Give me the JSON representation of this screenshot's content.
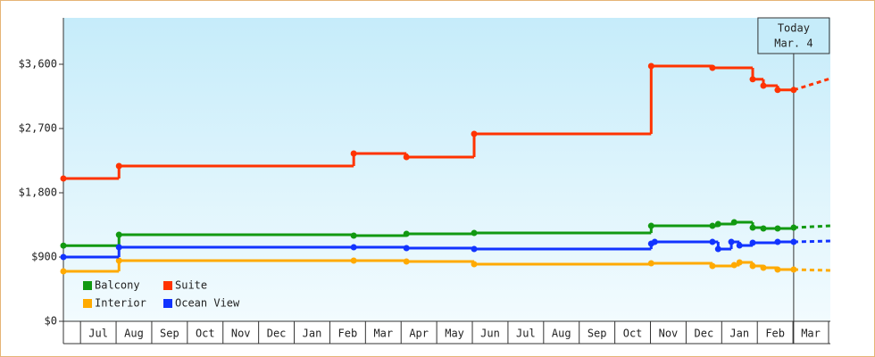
{
  "chart_data": {
    "type": "step-line",
    "xlim": [
      -0.48,
      21.05
    ],
    "xticks": [
      {
        "value": 0.5,
        "label": "Jul"
      },
      {
        "value": 1.5,
        "label": "Aug"
      },
      {
        "value": 2.5,
        "label": "Sep"
      },
      {
        "value": 3.5,
        "label": "Oct"
      },
      {
        "value": 4.5,
        "label": "Nov"
      },
      {
        "value": 5.5,
        "label": "Dec"
      },
      {
        "value": 6.5,
        "label": "Jan"
      },
      {
        "value": 7.5,
        "label": "Feb"
      },
      {
        "value": 8.5,
        "label": "Mar"
      },
      {
        "value": 9.5,
        "label": "Apr"
      },
      {
        "value": 10.5,
        "label": "May"
      },
      {
        "value": 11.5,
        "label": "Jun"
      },
      {
        "value": 12.5,
        "label": "Jul"
      },
      {
        "value": 13.5,
        "label": "Aug"
      },
      {
        "value": 14.5,
        "label": "Sep"
      },
      {
        "value": 15.5,
        "label": "Oct"
      },
      {
        "value": 16.5,
        "label": "Nov"
      },
      {
        "value": 17.5,
        "label": "Dec"
      },
      {
        "value": 18.5,
        "label": "Jan"
      },
      {
        "value": 19.5,
        "label": "Feb"
      },
      {
        "value": 20.5,
        "label": "Mar"
      }
    ],
    "ylim": [
      0,
      4250
    ],
    "yticks": [
      {
        "value": 0,
        "label": "$0"
      },
      {
        "value": 900,
        "label": "$900"
      },
      {
        "value": 1800,
        "label": "$1,800"
      },
      {
        "value": 2700,
        "label": "$2,700"
      },
      {
        "value": 3600,
        "label": "$3,600"
      }
    ],
    "today": {
      "x": 20.02,
      "label": "Today",
      "date": "Mar. 4"
    },
    "projection_x": [
      20.02,
      21.05
    ],
    "legend": "lower left",
    "series": [
      {
        "name": "Balcony",
        "color": "#119911",
        "x": [
          -0.48,
          1.08,
          7.67,
          9.15,
          11.05,
          16.02,
          17.74,
          17.9,
          18.35,
          18.87,
          19.17,
          19.57,
          20.02
        ],
        "values": [
          1060,
          1212,
          1200,
          1225,
          1237,
          1337,
          1337,
          1362,
          1387,
          1312,
          1300,
          1300,
          1312
        ],
        "projection": [
          1312,
          1337
        ]
      },
      {
        "name": "Suite",
        "color": "#ff3300",
        "x": [
          -0.48,
          1.08,
          7.67,
          9.15,
          11.05,
          16.02,
          17.74,
          18.87,
          19.17,
          19.57,
          20.02
        ],
        "values": [
          2000,
          2175,
          2350,
          2300,
          2625,
          3575,
          3550,
          3390,
          3300,
          3240,
          3240
        ],
        "projection": [
          3240,
          3400
        ]
      },
      {
        "name": "Interior",
        "color": "#ffaa00",
        "x": [
          -0.48,
          1.08,
          7.67,
          9.15,
          11.05,
          16.02,
          17.74,
          18.35,
          18.5,
          18.87,
          19.17,
          19.57,
          20.02
        ],
        "values": [
          700,
          850,
          850,
          837,
          800,
          812,
          775,
          787,
          825,
          775,
          750,
          725,
          725
        ],
        "projection": [
          725,
          712
        ]
      },
      {
        "name": "Ocean View",
        "color": "#1133ff",
        "x": [
          -0.48,
          1.08,
          7.67,
          9.15,
          11.05,
          16.02,
          16.12,
          17.74,
          17.9,
          18.27,
          18.5,
          18.87,
          19.57,
          20.02
        ],
        "values": [
          900,
          1037,
          1037,
          1025,
          1012,
          1087,
          1112,
          1112,
          1012,
          1112,
          1062,
          1100,
          1112,
          1112
        ],
        "projection": [
          1112,
          1125
        ]
      }
    ]
  }
}
